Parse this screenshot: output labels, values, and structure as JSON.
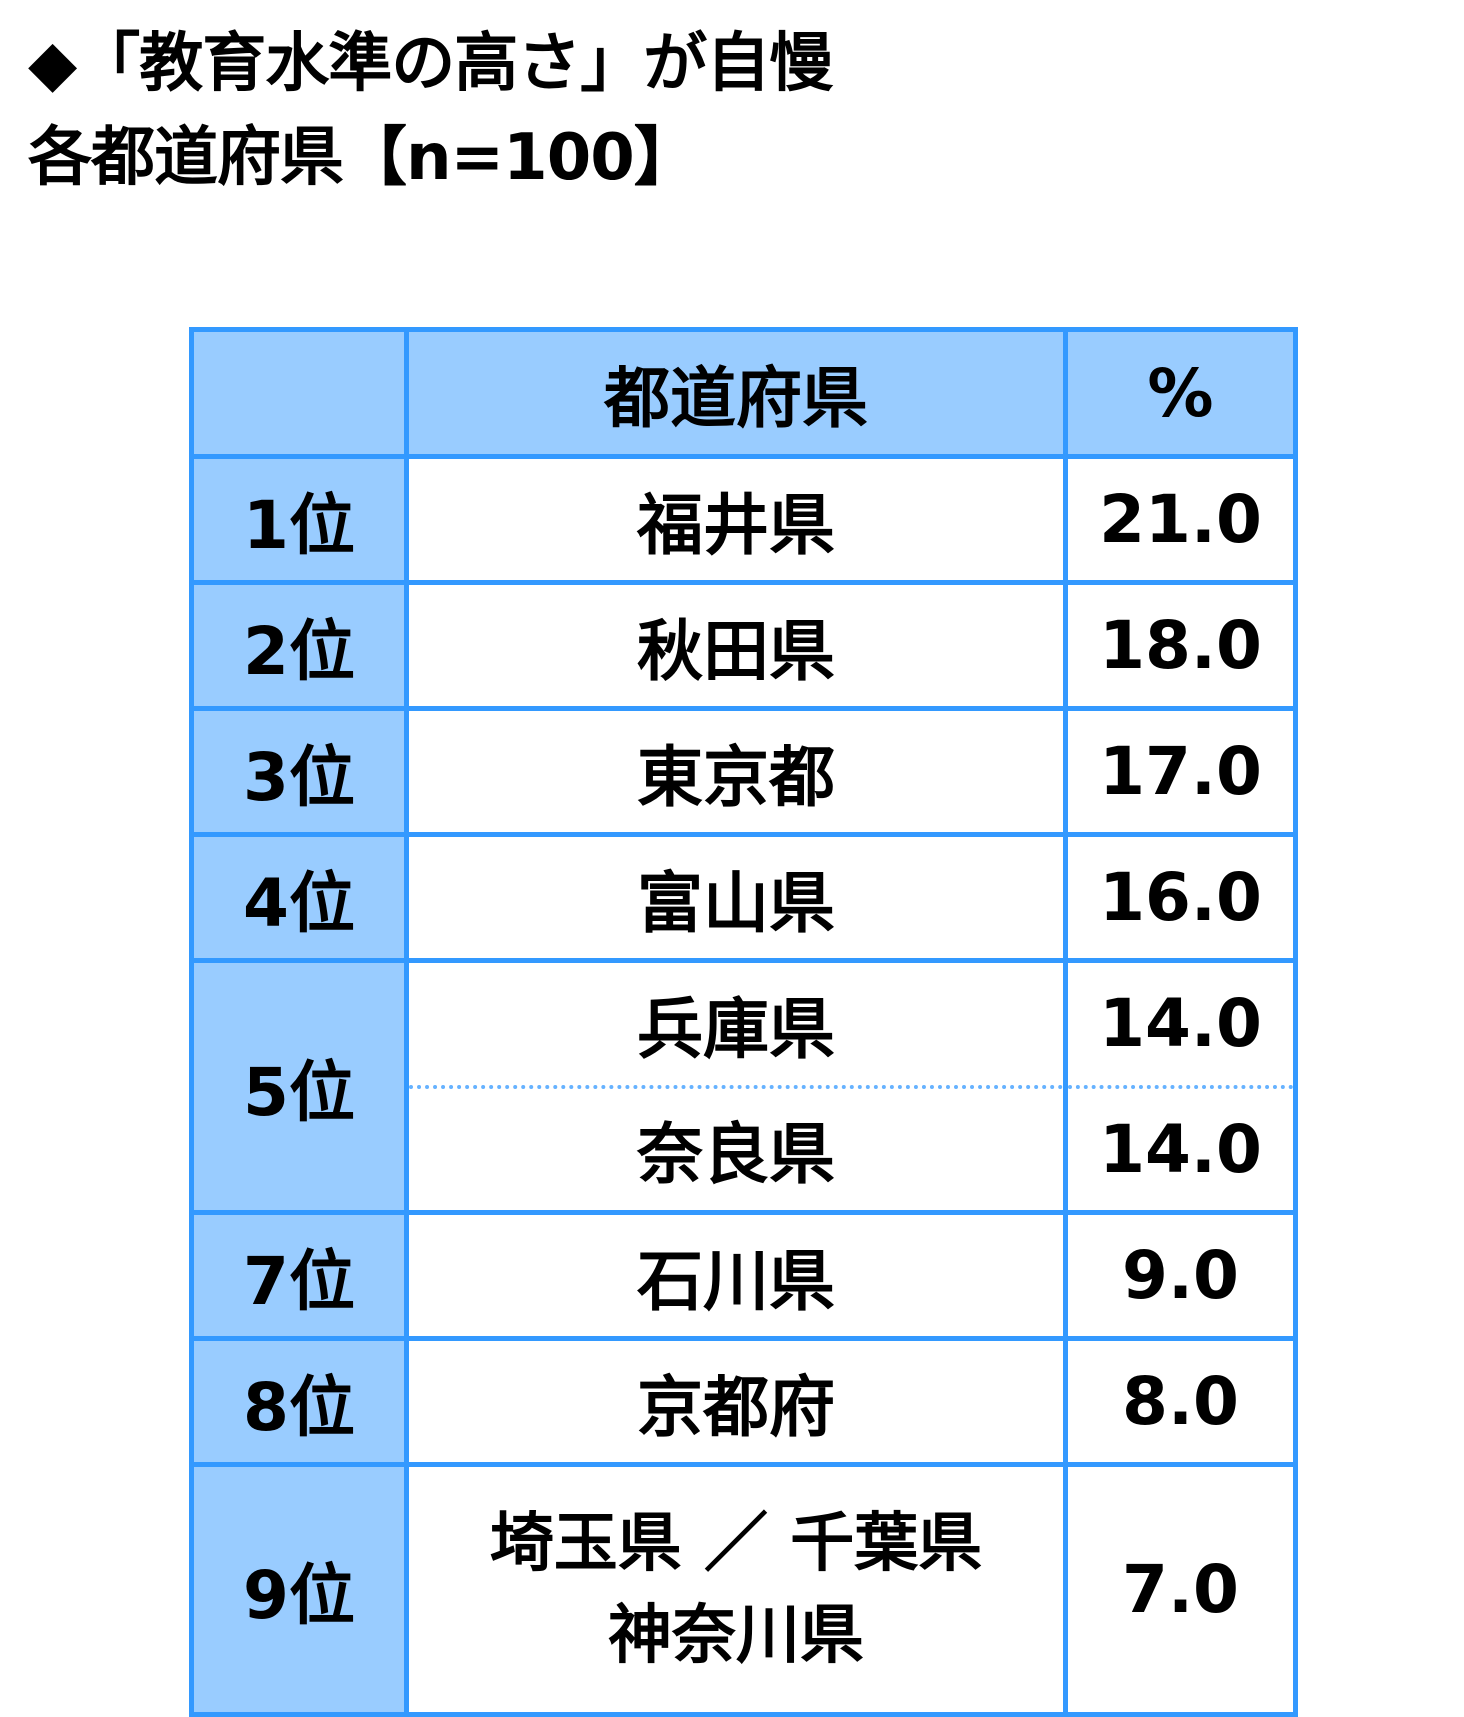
{
  "title": {
    "line1": "◆「教育水準の高さ」が自慢",
    "line2": "各都道府県【n=100】"
  },
  "table": {
    "headers": [
      "",
      "都道府県",
      "%"
    ],
    "rows": [
      {
        "rank": "1位",
        "prefs": [
          "福井県"
        ],
        "value": "21.0"
      },
      {
        "rank": "2位",
        "prefs": [
          "秋田県"
        ],
        "value": "18.0"
      },
      {
        "rank": "3位",
        "prefs": [
          "東京都"
        ],
        "value": "17.0"
      },
      {
        "rank": "4位",
        "prefs": [
          "富山県"
        ],
        "value": "16.0"
      },
      {
        "rank": "5位",
        "prefs": [
          "兵庫県",
          "奈良県"
        ],
        "value": "14.0",
        "value2": "14.0"
      },
      {
        "rank": "7位",
        "prefs": [
          "石川県"
        ],
        "value": "9.0"
      },
      {
        "rank": "8位",
        "prefs": [
          "京都府"
        ],
        "value": "8.0"
      },
      {
        "rank": "9位",
        "prefs": [
          "埼玉県 ／ 千葉県",
          "神奈川県"
        ],
        "value": "7.0"
      }
    ]
  },
  "colors": {
    "border": "#3399ff",
    "header_fill": "#99ccff"
  }
}
